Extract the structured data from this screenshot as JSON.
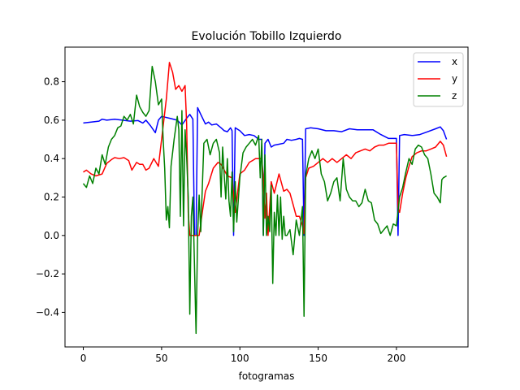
{
  "chart_data": {
    "type": "line",
    "title": "Evolución Tobillo Izquierdo",
    "xlabel": "fotogramas",
    "ylabel": "",
    "xlim": [
      -11.7,
      245.7
    ],
    "ylim": [
      -0.58,
      0.98
    ],
    "xticks": [
      0,
      50,
      100,
      150,
      200
    ],
    "yticks": [
      -0.4,
      -0.2,
      0.0,
      0.2,
      0.4,
      0.6,
      0.8
    ],
    "ytick_labels": [
      "−0.4",
      "−0.2",
      "0.0",
      "0.2",
      "0.4",
      "0.6",
      "0.8"
    ],
    "xtick_labels": [
      "0",
      "50",
      "100",
      "150",
      "200"
    ],
    "legend": {
      "placement": "top-right",
      "entries": [
        "x",
        "y",
        "z"
      ]
    },
    "grid": false,
    "series": [
      {
        "name": "x",
        "color": "#0000ff",
        "points": [
          [
            0,
            0.585
          ],
          [
            5,
            0.59
          ],
          [
            10,
            0.595
          ],
          [
            12,
            0.605
          ],
          [
            15,
            0.6
          ],
          [
            20,
            0.605
          ],
          [
            25,
            0.6
          ],
          [
            30,
            0.595
          ],
          [
            35,
            0.598
          ],
          [
            38,
            0.585
          ],
          [
            40,
            0.6
          ],
          [
            43,
            0.57
          ],
          [
            46,
            0.535
          ],
          [
            48,
            0.6
          ],
          [
            50,
            0.62
          ],
          [
            55,
            0.61
          ],
          [
            60,
            0.6
          ],
          [
            63,
            0.575
          ],
          [
            66,
            0.61
          ],
          [
            68,
            0.63
          ],
          [
            70,
            0.605
          ],
          [
            71,
            0.0
          ],
          [
            72,
            0.0
          ],
          [
            73,
            0.665
          ],
          [
            75,
            0.63
          ],
          [
            78,
            0.58
          ],
          [
            80,
            0.59
          ],
          [
            82,
            0.575
          ],
          [
            85,
            0.58
          ],
          [
            88,
            0.56
          ],
          [
            90,
            0.545
          ],
          [
            92,
            0.54
          ],
          [
            94,
            0.56
          ],
          [
            95,
            0.545
          ],
          [
            96,
            0.0
          ],
          [
            97,
            0.56
          ],
          [
            100,
            0.545
          ],
          [
            103,
            0.52
          ],
          [
            106,
            0.525
          ],
          [
            109,
            0.52
          ],
          [
            112,
            0.5
          ],
          [
            114,
            0.5
          ],
          [
            115,
            0.0
          ],
          [
            116,
            0.48
          ],
          [
            118,
            0.5
          ],
          [
            120,
            0.46
          ],
          [
            122,
            0.47
          ],
          [
            125,
            0.475
          ],
          [
            128,
            0.48
          ],
          [
            130,
            0.5
          ],
          [
            133,
            0.495
          ],
          [
            136,
            0.5
          ],
          [
            138,
            0.505
          ],
          [
            140,
            0.5
          ],
          [
            141,
            0.0
          ],
          [
            142,
            0.555
          ],
          [
            145,
            0.56
          ],
          [
            150,
            0.555
          ],
          [
            155,
            0.545
          ],
          [
            160,
            0.545
          ],
          [
            165,
            0.54
          ],
          [
            170,
            0.555
          ],
          [
            175,
            0.55
          ],
          [
            180,
            0.55
          ],
          [
            185,
            0.55
          ],
          [
            190,
            0.525
          ],
          [
            195,
            0.505
          ],
          [
            200,
            0.505
          ],
          [
            201,
            0.0
          ],
          [
            202,
            0.52
          ],
          [
            205,
            0.525
          ],
          [
            210,
            0.52
          ],
          [
            215,
            0.525
          ],
          [
            220,
            0.54
          ],
          [
            225,
            0.555
          ],
          [
            228,
            0.565
          ],
          [
            230,
            0.545
          ],
          [
            232,
            0.5
          ]
        ]
      },
      {
        "name": "y",
        "color": "#ff0000",
        "points": [
          [
            0,
            0.33
          ],
          [
            2,
            0.34
          ],
          [
            5,
            0.32
          ],
          [
            8,
            0.31
          ],
          [
            12,
            0.32
          ],
          [
            15,
            0.375
          ],
          [
            18,
            0.395
          ],
          [
            20,
            0.405
          ],
          [
            23,
            0.4
          ],
          [
            26,
            0.405
          ],
          [
            29,
            0.39
          ],
          [
            31,
            0.34
          ],
          [
            34,
            0.38
          ],
          [
            36,
            0.37
          ],
          [
            38,
            0.37
          ],
          [
            40,
            0.34
          ],
          [
            42,
            0.35
          ],
          [
            45,
            0.4
          ],
          [
            48,
            0.36
          ],
          [
            50,
            0.5
          ],
          [
            53,
            0.71
          ],
          [
            55,
            0.9
          ],
          [
            57,
            0.85
          ],
          [
            59,
            0.76
          ],
          [
            61,
            0.78
          ],
          [
            63,
            0.75
          ],
          [
            65,
            0.78
          ],
          [
            66,
            0.58
          ],
          [
            67,
            0.12
          ],
          [
            68,
            0.0
          ],
          [
            70,
            0.0
          ],
          [
            72,
            0.0
          ],
          [
            74,
            0.0
          ],
          [
            76,
            0.12
          ],
          [
            78,
            0.23
          ],
          [
            80,
            0.27
          ],
          [
            83,
            0.35
          ],
          [
            86,
            0.38
          ],
          [
            88,
            0.37
          ],
          [
            90,
            0.34
          ],
          [
            92,
            0.31
          ],
          [
            95,
            0.3
          ],
          [
            97,
            0.12
          ],
          [
            100,
            0.32
          ],
          [
            103,
            0.34
          ],
          [
            106,
            0.38
          ],
          [
            108,
            0.39
          ],
          [
            110,
            0.4
          ],
          [
            112,
            0.4
          ],
          [
            114,
            0.4
          ],
          [
            115,
            0.3
          ],
          [
            116,
            0.09
          ],
          [
            117,
            0.22
          ],
          [
            118,
            0.0
          ],
          [
            120,
            0.28
          ],
          [
            122,
            0.22
          ],
          [
            125,
            0.32
          ],
          [
            128,
            0.23
          ],
          [
            130,
            0.24
          ],
          [
            132,
            0.22
          ],
          [
            134,
            0.16
          ],
          [
            136,
            0.1
          ],
          [
            138,
            0.1
          ],
          [
            140,
            0.05
          ],
          [
            141,
            0.01
          ],
          [
            142,
            0.3
          ],
          [
            144,
            0.35
          ],
          [
            147,
            0.36
          ],
          [
            150,
            0.38
          ],
          [
            153,
            0.4
          ],
          [
            156,
            0.38
          ],
          [
            159,
            0.4
          ],
          [
            162,
            0.38
          ],
          [
            165,
            0.4
          ],
          [
            168,
            0.42
          ],
          [
            171,
            0.4
          ],
          [
            174,
            0.43
          ],
          [
            177,
            0.44
          ],
          [
            180,
            0.45
          ],
          [
            183,
            0.44
          ],
          [
            186,
            0.46
          ],
          [
            189,
            0.47
          ],
          [
            192,
            0.47
          ],
          [
            195,
            0.48
          ],
          [
            197,
            0.48
          ],
          [
            200,
            0.48
          ],
          [
            201,
            0.14
          ],
          [
            202,
            0.12
          ],
          [
            204,
            0.22
          ],
          [
            206,
            0.3
          ],
          [
            208,
            0.36
          ],
          [
            210,
            0.41
          ],
          [
            213,
            0.43
          ],
          [
            216,
            0.44
          ],
          [
            219,
            0.44
          ],
          [
            222,
            0.45
          ],
          [
            225,
            0.46
          ],
          [
            228,
            0.49
          ],
          [
            230,
            0.47
          ],
          [
            232,
            0.41
          ]
        ]
      },
      {
        "name": "z",
        "color": "#008000",
        "points": [
          [
            0,
            0.27
          ],
          [
            2,
            0.25
          ],
          [
            4,
            0.31
          ],
          [
            6,
            0.27
          ],
          [
            8,
            0.35
          ],
          [
            10,
            0.32
          ],
          [
            12,
            0.42
          ],
          [
            14,
            0.37
          ],
          [
            16,
            0.46
          ],
          [
            18,
            0.5
          ],
          [
            20,
            0.52
          ],
          [
            22,
            0.56
          ],
          [
            24,
            0.57
          ],
          [
            26,
            0.62
          ],
          [
            28,
            0.6
          ],
          [
            30,
            0.63
          ],
          [
            32,
            0.58
          ],
          [
            34,
            0.73
          ],
          [
            36,
            0.67
          ],
          [
            38,
            0.64
          ],
          [
            40,
            0.62
          ],
          [
            42,
            0.65
          ],
          [
            44,
            0.88
          ],
          [
            46,
            0.8
          ],
          [
            48,
            0.68
          ],
          [
            50,
            0.71
          ],
          [
            51,
            0.5
          ],
          [
            52,
            0.35
          ],
          [
            53,
            0.08
          ],
          [
            54,
            0.15
          ],
          [
            55,
            0.04
          ],
          [
            56,
            0.36
          ],
          [
            58,
            0.5
          ],
          [
            60,
            0.62
          ],
          [
            61,
            0.55
          ],
          [
            62,
            0.1
          ],
          [
            63,
            0.65
          ],
          [
            64,
            0.05
          ],
          [
            65,
            0.55
          ],
          [
            66,
            0.41
          ],
          [
            67,
            0.2
          ],
          [
            68,
            -0.41
          ],
          [
            69,
            0.1
          ],
          [
            70,
            0.2
          ],
          [
            72,
            -0.51
          ],
          [
            73,
            0.0
          ],
          [
            74,
            0.21
          ],
          [
            75,
            0.02
          ],
          [
            77,
            0.48
          ],
          [
            79,
            0.5
          ],
          [
            81,
            0.42
          ],
          [
            83,
            0.48
          ],
          [
            85,
            0.5
          ],
          [
            87,
            0.43
          ],
          [
            88,
            0.2
          ],
          [
            89,
            0.46
          ],
          [
            90,
            0.31
          ],
          [
            91,
            0.19
          ],
          [
            92,
            0.4
          ],
          [
            93,
            0.18
          ],
          [
            94,
            0.1
          ],
          [
            95,
            0.33
          ],
          [
            96,
            0.02
          ],
          [
            97,
            0.28
          ],
          [
            98,
            0.07
          ],
          [
            100,
            0.3
          ],
          [
            102,
            0.43
          ],
          [
            104,
            0.46
          ],
          [
            106,
            0.48
          ],
          [
            108,
            0.5
          ],
          [
            110,
            0.47
          ],
          [
            112,
            0.52
          ],
          [
            113,
            0.3
          ],
          [
            114,
            0.5
          ],
          [
            115,
            0.0
          ],
          [
            116,
            0.42
          ],
          [
            117,
            0.0
          ],
          [
            118,
            0.1
          ],
          [
            119,
            0.02
          ],
          [
            120,
            0.26
          ],
          [
            121,
            -0.25
          ],
          [
            122,
            0.12
          ],
          [
            123,
            0.0
          ],
          [
            124,
            0.21
          ],
          [
            125,
            0.0
          ],
          [
            126,
            0.2
          ],
          [
            127,
            -0.02
          ],
          [
            128,
            0.1
          ],
          [
            129,
            0.0
          ],
          [
            130,
            0.0
          ],
          [
            132,
            0.03
          ],
          [
            134,
            -0.1
          ],
          [
            136,
            0.08
          ],
          [
            138,
            0.0
          ],
          [
            140,
            0.15
          ],
          [
            141,
            -0.42
          ],
          [
            142,
            0.31
          ],
          [
            144,
            0.4
          ],
          [
            146,
            0.44
          ],
          [
            148,
            0.4
          ],
          [
            150,
            0.45
          ],
          [
            152,
            0.32
          ],
          [
            154,
            0.28
          ],
          [
            156,
            0.18
          ],
          [
            158,
            0.22
          ],
          [
            160,
            0.28
          ],
          [
            162,
            0.3
          ],
          [
            164,
            0.18
          ],
          [
            166,
            0.4
          ],
          [
            168,
            0.24
          ],
          [
            170,
            0.2
          ],
          [
            172,
            0.18
          ],
          [
            174,
            0.18
          ],
          [
            176,
            0.15
          ],
          [
            178,
            0.17
          ],
          [
            180,
            0.24
          ],
          [
            182,
            0.18
          ],
          [
            184,
            0.17
          ],
          [
            186,
            0.08
          ],
          [
            188,
            0.06
          ],
          [
            190,
            0.01
          ],
          [
            192,
            0.03
          ],
          [
            194,
            0.05
          ],
          [
            196,
            0.0
          ],
          [
            198,
            0.06
          ],
          [
            200,
            0.05
          ],
          [
            202,
            0.2
          ],
          [
            204,
            0.25
          ],
          [
            206,
            0.33
          ],
          [
            208,
            0.4
          ],
          [
            210,
            0.37
          ],
          [
            212,
            0.45
          ],
          [
            214,
            0.47
          ],
          [
            216,
            0.46
          ],
          [
            218,
            0.42
          ],
          [
            220,
            0.4
          ],
          [
            222,
            0.32
          ],
          [
            224,
            0.22
          ],
          [
            226,
            0.2
          ],
          [
            228,
            0.17
          ],
          [
            229,
            0.29
          ],
          [
            230,
            0.3
          ],
          [
            232,
            0.31
          ]
        ]
      }
    ]
  }
}
